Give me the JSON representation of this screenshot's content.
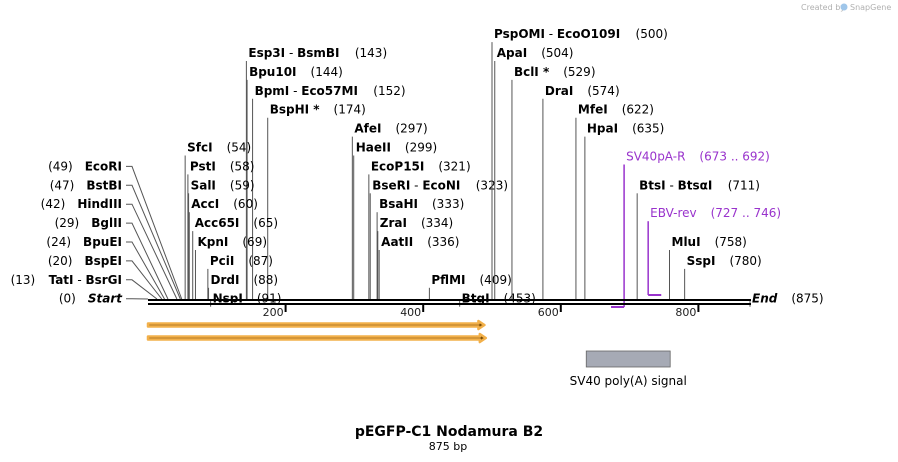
{
  "credit": {
    "text": "Created by",
    "brand": "SnapGene"
  },
  "title": "pEGFP-C1 Nodamura B2",
  "length_label": "875 bp",
  "sequence_length": 875,
  "axis_ticks": [
    200,
    400,
    600,
    800
  ],
  "sites": [
    {
      "name": "Esp3I",
      "sep": "  -  ",
      "alt": "BsmBI",
      "star": "",
      "pos": "(143)",
      "bp": 143,
      "row": 0,
      "side": "right"
    },
    {
      "name": "Bpu10I",
      "sep": "",
      "alt": "",
      "star": "",
      "pos": "(144)",
      "bp": 144,
      "row": 1,
      "side": "right"
    },
    {
      "name": "BpmI",
      "sep": "  -  ",
      "alt": "Eco57MI",
      "star": "",
      "pos": "(152)",
      "bp": 152,
      "row": 2,
      "side": "right"
    },
    {
      "name": "BspHI",
      "sep": "",
      "alt": "",
      "star": " *",
      "pos": "(174)",
      "bp": 174,
      "row": 3,
      "side": "right"
    },
    {
      "name": "SfcI",
      "sep": "",
      "alt": "",
      "star": "",
      "pos": "(54)",
      "bp": 54,
      "row": 5,
      "side": "right"
    },
    {
      "name": "PstI",
      "sep": "",
      "alt": "",
      "star": "",
      "pos": "(58)",
      "bp": 58,
      "row": 6,
      "side": "right"
    },
    {
      "name": "SalI",
      "sep": "",
      "alt": "",
      "star": "",
      "pos": "(59)",
      "bp": 59,
      "row": 7,
      "side": "right"
    },
    {
      "name": "AccI",
      "sep": "",
      "alt": "",
      "star": "",
      "pos": "(60)",
      "bp": 60,
      "row": 8,
      "side": "right"
    },
    {
      "name": "Acc65I",
      "sep": "",
      "alt": "",
      "star": "",
      "pos": "(65)",
      "bp": 65,
      "row": 9,
      "side": "right"
    },
    {
      "name": "KpnI",
      "sep": "",
      "alt": "",
      "star": "",
      "pos": "(69)",
      "bp": 69,
      "row": 10,
      "side": "right"
    },
    {
      "name": "PciI",
      "sep": "",
      "alt": "",
      "star": "",
      "pos": "(87)",
      "bp": 87,
      "row": 11,
      "side": "right"
    },
    {
      "name": "DrdI",
      "sep": "",
      "alt": "",
      "star": "",
      "pos": "(88)",
      "bp": 88,
      "row": 12,
      "side": "right"
    },
    {
      "name": "NspI",
      "sep": "",
      "alt": "",
      "star": "",
      "pos": "(91)",
      "bp": 91,
      "row": 13,
      "side": "right"
    },
    {
      "name": "EcoRI",
      "sep": "",
      "alt": "",
      "star": "",
      "pos": "(49)",
      "bp": 49,
      "row": 6,
      "side": "left"
    },
    {
      "name": "BstBI",
      "sep": "",
      "alt": "",
      "star": "",
      "pos": "(47)",
      "bp": 47,
      "row": 7,
      "side": "left"
    },
    {
      "name": "HindIII",
      "sep": "",
      "alt": "",
      "star": "",
      "pos": "(42)",
      "bp": 42,
      "row": 8,
      "side": "left"
    },
    {
      "name": "BglII",
      "sep": "",
      "alt": "",
      "star": "",
      "pos": "(29)",
      "bp": 29,
      "row": 9,
      "side": "left"
    },
    {
      "name": "BpuEI",
      "sep": "",
      "alt": "",
      "star": "",
      "pos": "(24)",
      "bp": 24,
      "row": 10,
      "side": "left"
    },
    {
      "name": "BspEI",
      "sep": "",
      "alt": "",
      "star": "",
      "pos": "(20)",
      "bp": 20,
      "row": 11,
      "side": "left"
    },
    {
      "name": "TatI",
      "sep": "  -  ",
      "alt": "BsrGI",
      "star": "",
      "pos": "(13)",
      "bp": 13,
      "row": 12,
      "side": "left"
    },
    {
      "name": "Start",
      "sep": "",
      "alt": "",
      "star": "",
      "pos": "(0)",
      "bp": 0,
      "row": 13,
      "side": "left",
      "italic": true
    },
    {
      "name": "AfeI",
      "sep": "",
      "alt": "",
      "star": "",
      "pos": "(297)",
      "bp": 297,
      "row": 4,
      "side": "right"
    },
    {
      "name": "HaeII",
      "sep": "",
      "alt": "",
      "star": "",
      "pos": "(299)",
      "bp": 299,
      "row": 5,
      "side": "right"
    },
    {
      "name": "EcoP15I",
      "sep": "",
      "alt": "",
      "star": "",
      "pos": "(321)",
      "bp": 321,
      "row": 6,
      "side": "right"
    },
    {
      "name": "BseRI",
      "sep": "  -  ",
      "alt": "EcoNI",
      "star": "",
      "pos": "(323)",
      "bp": 323,
      "row": 7,
      "side": "right"
    },
    {
      "name": "BsaHI",
      "sep": "",
      "alt": "",
      "star": "",
      "pos": "(333)",
      "bp": 333,
      "row": 8,
      "side": "right"
    },
    {
      "name": "ZraI",
      "sep": "",
      "alt": "",
      "star": "",
      "pos": "(334)",
      "bp": 334,
      "row": 9,
      "side": "right"
    },
    {
      "name": "AatII",
      "sep": "",
      "alt": "",
      "star": "",
      "pos": "(336)",
      "bp": 336,
      "row": 10,
      "side": "right"
    },
    {
      "name": "PflMI",
      "sep": "",
      "alt": "",
      "star": "",
      "pos": "(409)",
      "bp": 409,
      "row": 12,
      "side": "right"
    },
    {
      "name": "BtgI",
      "sep": "",
      "alt": "",
      "star": "",
      "pos": "(453)",
      "bp": 453,
      "row": 13,
      "side": "right"
    },
    {
      "name": "PspOMI",
      "sep": "  -  ",
      "alt": "EcoO109I",
      "star": "",
      "pos": "(500)",
      "bp": 500,
      "row": -1,
      "side": "right"
    },
    {
      "name": "ApaI",
      "sep": "",
      "alt": "",
      "star": "",
      "pos": "(504)",
      "bp": 504,
      "row": 0,
      "side": "right"
    },
    {
      "name": "BclI",
      "sep": "",
      "alt": "",
      "star": " *",
      "pos": "(529)",
      "bp": 529,
      "row": 1,
      "side": "right"
    },
    {
      "name": "DraI",
      "sep": "",
      "alt": "",
      "star": "",
      "pos": "(574)",
      "bp": 574,
      "row": 2,
      "side": "right"
    },
    {
      "name": "MfeI",
      "sep": "",
      "alt": "",
      "star": "",
      "pos": "(622)",
      "bp": 622,
      "row": 3,
      "side": "right"
    },
    {
      "name": "HpaI",
      "sep": "",
      "alt": "",
      "star": "",
      "pos": "(635)",
      "bp": 635,
      "row": 4,
      "side": "right"
    },
    {
      "name": "BtsI",
      "sep": "  -  ",
      "alt": "BtsαI",
      "star": "",
      "pos": "(711)",
      "bp": 711,
      "row": 7,
      "side": "right"
    },
    {
      "name": "MluI",
      "sep": "",
      "alt": "",
      "star": "",
      "pos": "(758)",
      "bp": 758,
      "row": 10,
      "side": "right"
    },
    {
      "name": "SspI",
      "sep": "",
      "alt": "",
      "star": "",
      "pos": "(780)",
      "bp": 780,
      "row": 11,
      "side": "right"
    },
    {
      "name": "End",
      "sep": "",
      "alt": "",
      "star": "",
      "pos": "(875)",
      "bp": 875,
      "row": 13,
      "side": "right",
      "italic": true
    }
  ],
  "primers": [
    {
      "name": "SV40pA-R",
      "range": "(673 .. 692)",
      "start": 673,
      "end": 692,
      "row": 5,
      "color": "#9933cc"
    },
    {
      "name": "EBV-rev",
      "range": "(727 .. 746)",
      "start": 727,
      "end": 746,
      "row": 8,
      "color": "#9933cc"
    }
  ],
  "orf_arrows": [
    {
      "start": 0,
      "end": 489,
      "color": "#f2b04a"
    },
    {
      "start": 0,
      "end": 491,
      "color": "#f2b04a"
    }
  ],
  "features": [
    {
      "label": "SV40 poly(A) signal",
      "start": 637,
      "end": 759,
      "color": "#a6aab5"
    }
  ]
}
